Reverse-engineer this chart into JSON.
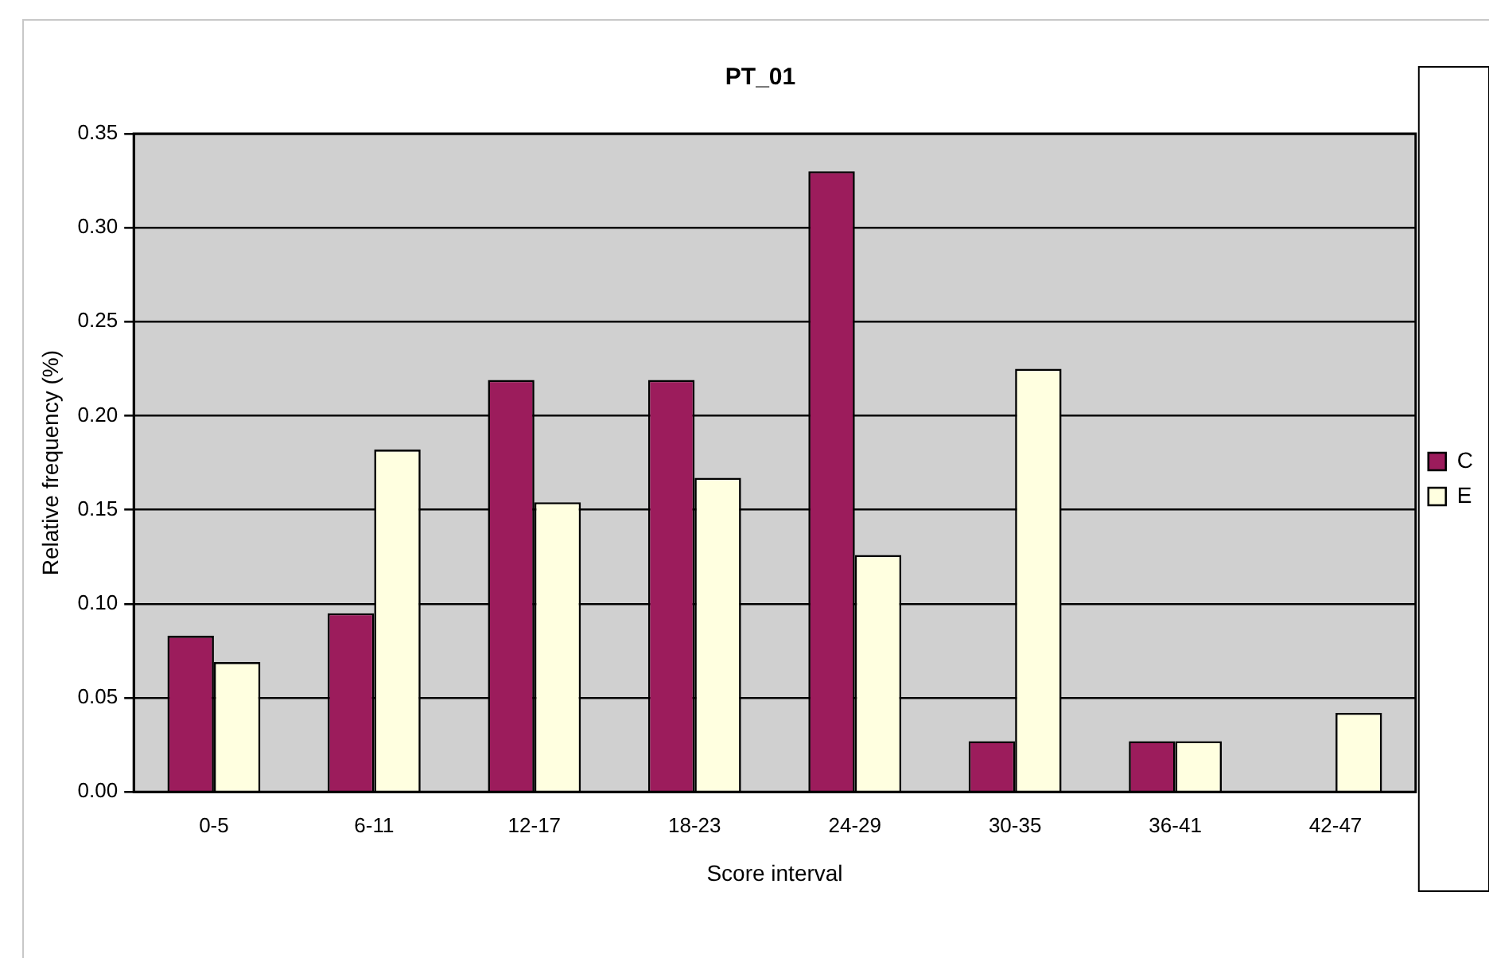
{
  "chart_data": {
    "type": "bar",
    "title": "PT_01",
    "xlabel": "Score interval",
    "ylabel": "Relative frequency (%)",
    "categories": [
      "0-5",
      "6-11",
      "12-17",
      "18-23",
      "24-29",
      "30-35",
      "36-41",
      "42-47"
    ],
    "series": [
      {
        "name": "C",
        "color": "#9c1c5c",
        "values": [
          0.083,
          0.095,
          0.219,
          0.219,
          0.33,
          0.027,
          0.027,
          0
        ]
      },
      {
        "name": "E",
        "color": "#ffffe0",
        "values": [
          0.069,
          0.182,
          0.154,
          0.167,
          0.126,
          0.225,
          0.027,
          0.042
        ]
      }
    ],
    "ylim": [
      0,
      0.35
    ],
    "yticks": [
      {
        "value": 0,
        "label": "0.00"
      },
      {
        "value": 0.05,
        "label": "0.05"
      },
      {
        "value": 0.1,
        "label": "0.10"
      },
      {
        "value": 0.15,
        "label": "0.15"
      },
      {
        "value": 0.2,
        "label": "0.20"
      },
      {
        "value": 0.25,
        "label": "0.25"
      },
      {
        "value": 0.3,
        "label": "0.30"
      },
      {
        "value": 0.35,
        "label": "0.35"
      }
    ],
    "grid": "y",
    "legend": "right"
  }
}
